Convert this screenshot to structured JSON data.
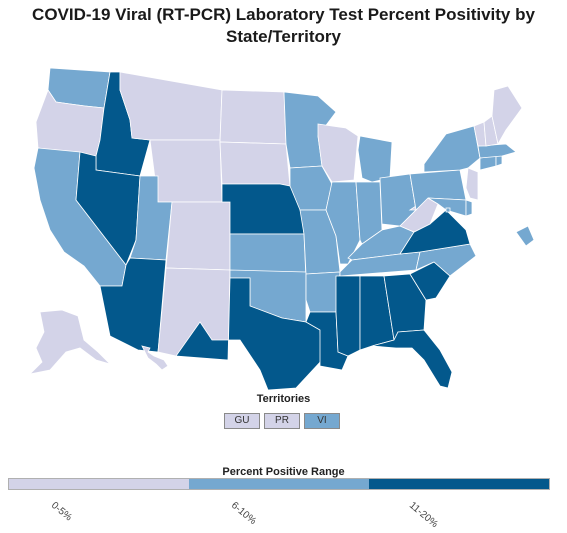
{
  "title": "COVID-19 Viral (RT-PCR) Laboratory Test Percent Positivity by State/Territory",
  "colors": {
    "low": "#d3d3e8",
    "mid": "#75a8d0",
    "high": "#03588c",
    "border": "#ffffff"
  },
  "territories": {
    "title": "Territories",
    "items": [
      {
        "code": "GU",
        "category": "low"
      },
      {
        "code": "PR",
        "category": "low"
      },
      {
        "code": "VI",
        "category": "mid"
      }
    ]
  },
  "legend": {
    "title": "Percent Positive Range",
    "ranges": [
      {
        "label": "0-5%",
        "category": "low"
      },
      {
        "label": "6-10%",
        "category": "mid"
      },
      {
        "label": "11-20%",
        "category": "high"
      }
    ]
  },
  "states": [
    {
      "code": "WA",
      "category": "mid"
    },
    {
      "code": "OR",
      "category": "low"
    },
    {
      "code": "CA",
      "category": "mid"
    },
    {
      "code": "ID",
      "category": "high"
    },
    {
      "code": "NV",
      "category": "high"
    },
    {
      "code": "MT",
      "category": "low"
    },
    {
      "code": "WY",
      "category": "low"
    },
    {
      "code": "UT",
      "category": "mid"
    },
    {
      "code": "AZ",
      "category": "high"
    },
    {
      "code": "CO",
      "category": "low"
    },
    {
      "code": "NM",
      "category": "low"
    },
    {
      "code": "ND",
      "category": "low"
    },
    {
      "code": "SD",
      "category": "low"
    },
    {
      "code": "NE",
      "category": "high"
    },
    {
      "code": "KS",
      "category": "mid"
    },
    {
      "code": "OK",
      "category": "mid"
    },
    {
      "code": "TX",
      "category": "high"
    },
    {
      "code": "MN",
      "category": "mid"
    },
    {
      "code": "IA",
      "category": "mid"
    },
    {
      "code": "MO",
      "category": "mid"
    },
    {
      "code": "AR",
      "category": "mid"
    },
    {
      "code": "LA",
      "category": "high"
    },
    {
      "code": "WI",
      "category": "low"
    },
    {
      "code": "IL",
      "category": "mid"
    },
    {
      "code": "MI",
      "category": "mid"
    },
    {
      "code": "IN",
      "category": "mid"
    },
    {
      "code": "OH",
      "category": "mid"
    },
    {
      "code": "KY",
      "category": "mid"
    },
    {
      "code": "TN",
      "category": "mid"
    },
    {
      "code": "MS",
      "category": "high"
    },
    {
      "code": "AL",
      "category": "high"
    },
    {
      "code": "GA",
      "category": "high"
    },
    {
      "code": "FL",
      "category": "high"
    },
    {
      "code": "SC",
      "category": "high"
    },
    {
      "code": "NC",
      "category": "mid"
    },
    {
      "code": "VA",
      "category": "high"
    },
    {
      "code": "WV",
      "category": "low"
    },
    {
      "code": "PA",
      "category": "mid"
    },
    {
      "code": "NY",
      "category": "mid"
    },
    {
      "code": "ME",
      "category": "low"
    },
    {
      "code": "NH",
      "category": "low"
    },
    {
      "code": "VT",
      "category": "low"
    },
    {
      "code": "MA",
      "category": "mid"
    },
    {
      "code": "CT",
      "category": "mid"
    },
    {
      "code": "RI",
      "category": "mid"
    },
    {
      "code": "NJ",
      "category": "low"
    },
    {
      "code": "DE",
      "category": "mid"
    },
    {
      "code": "MD",
      "category": "mid"
    },
    {
      "code": "DC",
      "category": "mid"
    },
    {
      "code": "AK",
      "category": "low"
    },
    {
      "code": "HI",
      "category": "low"
    }
  ]
}
